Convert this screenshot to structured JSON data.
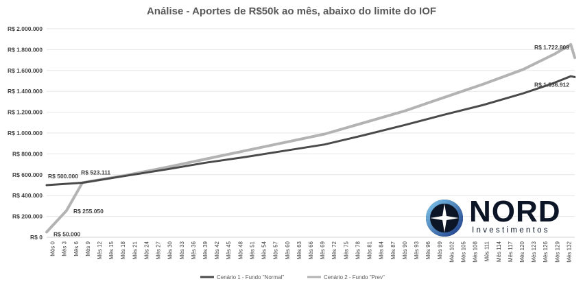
{
  "chart_data": {
    "type": "line",
    "title": "Análise - Aportes de R$50k ao mês, abaixo do limite do IOF",
    "y_tick_labels": [
      "R$ 0",
      "R$ 200.000",
      "R$ 400.000",
      "R$ 600.000",
      "R$ 800.000",
      "R$ 1.000.000",
      "R$ 1.200.000",
      "R$ 1.400.000",
      "R$ 1.600.000",
      "R$ 1.800.000",
      "R$ 2.000.000"
    ],
    "ylim": [
      0,
      2000000
    ],
    "grid": true,
    "x_tick_labels": [
      "Mês 0",
      "Mês 3",
      "Mês 6",
      "Mês 9",
      "Mês 12",
      "Mês 15",
      "Mês 18",
      "Mês 21",
      "Mês 24",
      "Mês 27",
      "Mês 30",
      "Mês 33",
      "Mês 36",
      "Mês 39",
      "Mês 42",
      "Mês 45",
      "Mês 48",
      "Mês 51",
      "Mês 54",
      "Mês 57",
      "Mês 60",
      "Mês 63",
      "Mês 66",
      "Mês 69",
      "Mês 72",
      "Mês 75",
      "Mês 78",
      "Mês 81",
      "Mês 84",
      "Mês 87",
      "Mês 90",
      "Mês 93",
      "Mês 96",
      "Mês 99",
      "Mês 102",
      "Mês 105",
      "Mês 108",
      "Mês 111",
      "Mês 114",
      "Mês 117",
      "Mês 120",
      "Mês 123",
      "Mês 126",
      "Mês 129",
      "Mês 132"
    ],
    "x_range": [
      0,
      133
    ],
    "series": [
      {
        "name": "Cenário 1 - Fundo \"Normal\"",
        "color": "#4a4a4a",
        "points": [
          [
            0,
            500000
          ],
          [
            9,
            523111
          ],
          [
            20,
            590000
          ],
          [
            30,
            650000
          ],
          [
            40,
            715000
          ],
          [
            50,
            770000
          ],
          [
            60,
            830000
          ],
          [
            70,
            890000
          ],
          [
            80,
            980000
          ],
          [
            90,
            1075000
          ],
          [
            100,
            1175000
          ],
          [
            110,
            1270000
          ],
          [
            120,
            1380000
          ],
          [
            127,
            1470000
          ],
          [
            132,
            1545000
          ],
          [
            133,
            1536912
          ]
        ]
      },
      {
        "name": "Cenário 2 - Fundo \"Prev\"",
        "color": "#b3b3b3",
        "points": [
          [
            0,
            50000
          ],
          [
            5,
            255050
          ],
          [
            9,
            523111
          ],
          [
            20,
            595000
          ],
          [
            30,
            670000
          ],
          [
            40,
            750000
          ],
          [
            50,
            830000
          ],
          [
            60,
            910000
          ],
          [
            70,
            990000
          ],
          [
            80,
            1100000
          ],
          [
            90,
            1210000
          ],
          [
            100,
            1340000
          ],
          [
            110,
            1470000
          ],
          [
            120,
            1610000
          ],
          [
            128,
            1760000
          ],
          [
            132,
            1850000
          ],
          [
            133,
            1722809
          ]
        ]
      }
    ],
    "annotations": [
      {
        "text": "R$ 500.000",
        "x": 0,
        "y": 500000
      },
      {
        "text": "R$ 523.111",
        "x": 9,
        "y": 523111
      },
      {
        "text": "R$ 255.050",
        "x": 5,
        "y": 255050
      },
      {
        "text": "R$ 50.000",
        "x": 0,
        "y": 50000
      },
      {
        "text": "R$ 1.722.809",
        "x": 133,
        "y": 1722809
      },
      {
        "text": "R$ 1.536.912",
        "x": 133,
        "y": 1536912
      }
    ],
    "legend_position": "bottom"
  },
  "logo": {
    "wordmark": "NORD",
    "subtitle": "Investimentos",
    "colors": [
      "#0b1526",
      "#3a78c3",
      "#7cc4ea"
    ]
  }
}
